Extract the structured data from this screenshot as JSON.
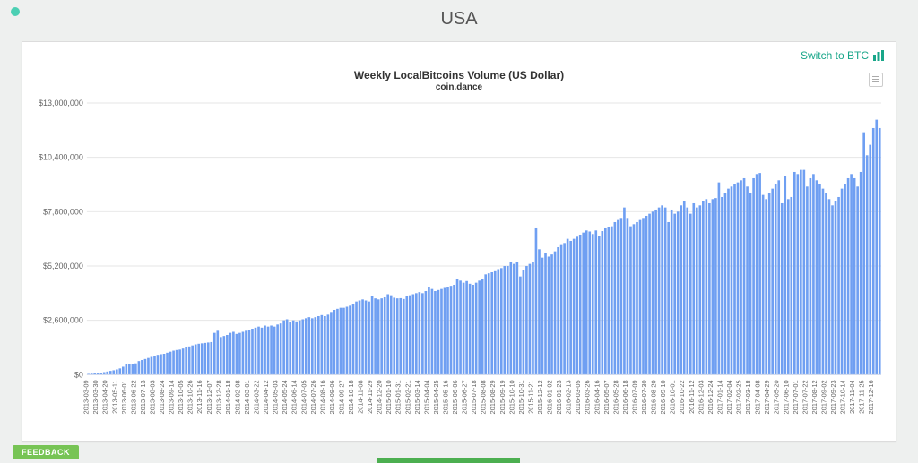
{
  "page": {
    "title": "USA"
  },
  "logo": {
    "color": "#4bcfb3"
  },
  "switch": {
    "label": "Switch to BTC",
    "color": "#18a689"
  },
  "feedback": {
    "label": "FEEDBACK"
  },
  "chart": {
    "type": "bar",
    "title": "Weekly LocalBitcoins Volume (US Dollar)",
    "subtitle": "coin.dance",
    "bar_color": "#6f9ff2",
    "background_color": "#ffffff",
    "grid_color": "#e6e6e6",
    "ylabel_color": "#666666",
    "xlabel_color": "#666666",
    "ylim": [
      0,
      13000000
    ],
    "ytick_step": 2600000,
    "ytick_labels": [
      "$0",
      "$2,600,000",
      "$5,200,000",
      "$7,800,000",
      "$10,400,000",
      "$13,000,000"
    ],
    "xlabels": [
      "2013-03-09",
      "2013-03-30",
      "2013-04-20",
      "2013-05-11",
      "2013-06-01",
      "2013-06-22",
      "2013-07-13",
      "2013-08-03",
      "2013-08-24",
      "2013-09-14",
      "2013-10-05",
      "2013-10-26",
      "2013-11-16",
      "2013-12-07",
      "2013-12-28",
      "2014-01-18",
      "2014-02-08",
      "2014-03-01",
      "2014-03-22",
      "2014-04-12",
      "2014-05-03",
      "2014-05-24",
      "2014-06-14",
      "2014-07-05",
      "2014-07-26",
      "2014-08-16",
      "2014-09-06",
      "2014-09-27",
      "2014-10-18",
      "2014-11-08",
      "2014-11-29",
      "2014-12-20",
      "2015-01-10",
      "2015-01-31",
      "2015-02-21",
      "2015-03-14",
      "2015-04-04",
      "2015-04-25",
      "2015-05-16",
      "2015-06-06",
      "2015-06-27",
      "2015-07-18",
      "2015-08-08",
      "2015-08-29",
      "2015-09-19",
      "2015-10-10",
      "2015-10-31",
      "2015-11-21",
      "2015-12-12",
      "2016-01-02",
      "2016-01-23",
      "2016-02-13",
      "2016-03-05",
      "2016-03-26",
      "2016-04-16",
      "2016-05-07",
      "2016-05-28",
      "2016-06-18",
      "2016-07-09",
      "2016-07-30",
      "2016-08-20",
      "2016-09-10",
      "2016-10-01",
      "2016-10-22",
      "2016-11-12",
      "2016-12-03",
      "2016-12-24",
      "2017-01-14",
      "2017-02-04",
      "2017-02-25",
      "2017-03-18",
      "2017-04-08",
      "2017-04-29",
      "2017-05-20",
      "2017-06-10",
      "2017-07-01",
      "2017-07-22",
      "2017-08-12",
      "2017-09-02",
      "2017-09-23",
      "2017-10-14",
      "2017-11-04",
      "2017-11-25",
      "2017-12-16"
    ],
    "xlabel_every": 3,
    "values": [
      40,
      50,
      60,
      80,
      100,
      120,
      150,
      180,
      210,
      250,
      300,
      380,
      520,
      500,
      520,
      540,
      650,
      700,
      750,
      800,
      850,
      900,
      950,
      980,
      1000,
      1050,
      1100,
      1150,
      1180,
      1200,
      1250,
      1300,
      1350,
      1400,
      1450,
      1480,
      1500,
      1520,
      1540,
      1560,
      2000,
      2100,
      1800,
      1850,
      1900,
      2000,
      2050,
      1950,
      2000,
      2050,
      2100,
      2150,
      2200,
      2250,
      2300,
      2250,
      2350,
      2300,
      2350,
      2300,
      2400,
      2450,
      2600,
      2650,
      2500,
      2600,
      2550,
      2600,
      2650,
      2700,
      2750,
      2700,
      2750,
      2800,
      2850,
      2800,
      2870,
      3000,
      3100,
      3150,
      3200,
      3200,
      3250,
      3300,
      3400,
      3500,
      3550,
      3600,
      3550,
      3500,
      3760,
      3650,
      3600,
      3650,
      3700,
      3850,
      3800,
      3680,
      3650,
      3660,
      3620,
      3750,
      3800,
      3850,
      3900,
      3950,
      3900,
      4000,
      4200,
      4100,
      4000,
      4050,
      4100,
      4150,
      4200,
      4250,
      4300,
      4600,
      4500,
      4400,
      4480,
      4350,
      4300,
      4400,
      4500,
      4600,
      4800,
      4850,
      4900,
      4950,
      5050,
      5100,
      5200,
      5200,
      5400,
      5300,
      5400,
      4700,
      5000,
      5200,
      5300,
      5400,
      7000,
      6000,
      5600,
      5800,
      5650,
      5750,
      5900,
      6100,
      6200,
      6300,
      6500,
      6400,
      6500,
      6600,
      6700,
      6800,
      6900,
      6850,
      6730,
      6900,
      6650,
      6870,
      7000,
      7050,
      7100,
      7300,
      7400,
      7500,
      8000,
      7500,
      7100,
      7200,
      7300,
      7400,
      7500,
      7600,
      7700,
      7800,
      7900,
      8000,
      8100,
      8000,
      7300,
      7900,
      7700,
      7800,
      8100,
      8300,
      8000,
      7700,
      8200,
      8000,
      8100,
      8300,
      8400,
      8200,
      8400,
      8450,
      9200,
      8500,
      8700,
      8900,
      9000,
      9100,
      9200,
      9300,
      9400,
      9000,
      8700,
      9400,
      9600,
      9650,
      8600,
      8400,
      8700,
      8900,
      9100,
      9300,
      8200,
      9500,
      8400,
      8500,
      9700,
      9600,
      9800,
      9800,
      9000,
      9400,
      9600,
      9300,
      9100,
      8900,
      8700,
      8400,
      8100,
      8300,
      8500,
      8900,
      9100,
      9400,
      9600,
      9400,
      9000,
      9700,
      11600,
      10500,
      11000,
      11800,
      12200,
      11800
    ],
    "value_unit": 1000
  }
}
